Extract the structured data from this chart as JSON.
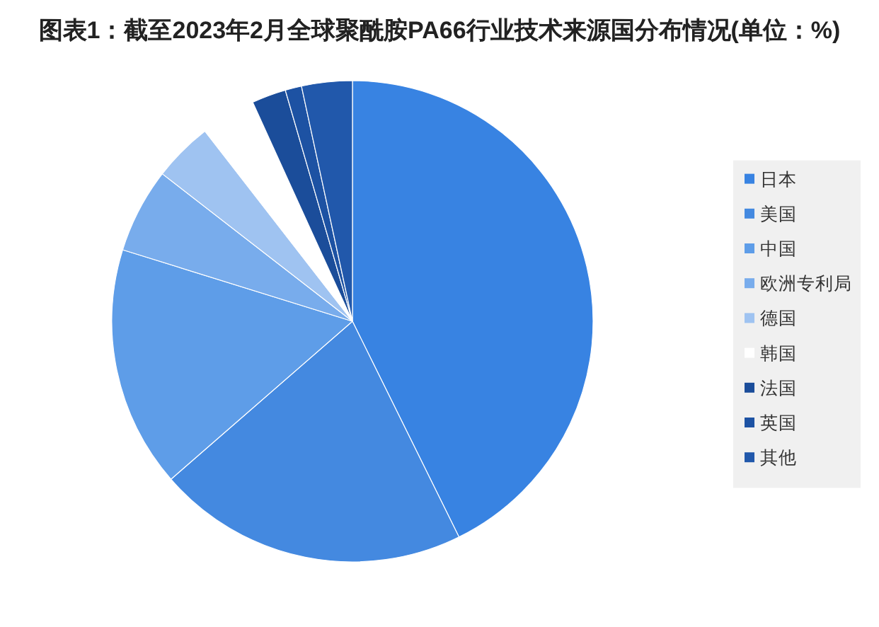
{
  "chart_data": {
    "type": "pie",
    "title": "图表1：截至2023年2月全球聚酰胺PA66行业技术来源国分布情况(单位：%)",
    "categories": [
      "日本",
      "美国",
      "中国",
      "欧洲专利局",
      "德国",
      "韩国",
      "法国",
      "英国",
      "其他"
    ],
    "values": [
      42.7,
      20.9,
      16.2,
      5.7,
      4.0,
      3.7,
      2.3,
      1.1,
      3.4
    ],
    "colors": [
      "#3883e2",
      "#4489e0",
      "#5e9de8",
      "#78acec",
      "#9fc3f1",
      "#ffffff",
      "#1b4d9a",
      "#1d52a3",
      "#2158ab"
    ],
    "legend": "right"
  }
}
